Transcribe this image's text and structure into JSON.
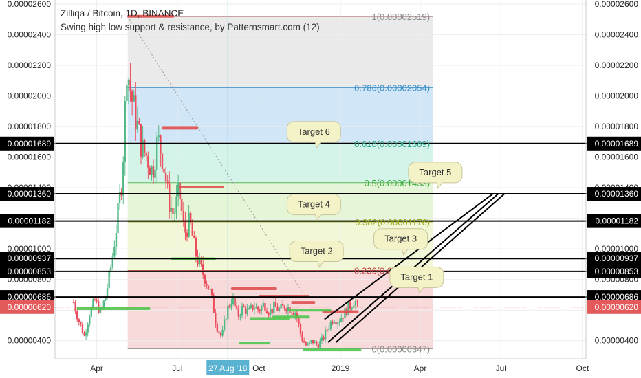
{
  "header": {
    "title": "Zilliqa / Bitcoin, 1D, BINANCE",
    "subtitle": "Swing high low support & resistance, by Patternsmart.com (12)"
  },
  "colors": {
    "fib_zone_top": "#e6e6e6",
    "fib_zone_786": "#c9e2f5",
    "fib_zone_618": "#cdf2e6",
    "fib_zone_5": "#e1f5d0",
    "fib_zone_382": "#f0f7d0",
    "fib_zone_low": "#f8d3d3",
    "price_badge": "#e25a5a",
    "candle_up": "#53b987",
    "candle_down": "#eb4d5c",
    "resistance": "#e05050",
    "support": "#50c850",
    "target_line": "#000000",
    "callout_fill": "#f4f3c8",
    "callout_stroke": "#c8c49a",
    "date_badge": "#58b2d0"
  },
  "chart_data": {
    "type": "candlestick",
    "y_scale": "linear",
    "ylim": [
      3e-06,
      2.6e-05
    ],
    "x_range": [
      "2018-02-13",
      "2019-10-05"
    ],
    "y_ticks": [
      "0.00000400",
      "0.00000600",
      "0.00000800",
      "0.00001000",
      "0.00001200",
      "0.00001400",
      "0.00001600",
      "0.00001800",
      "0.00002000",
      "0.00002200",
      "0.00002400",
      "0.00002600"
    ],
    "x_ticks": [
      {
        "label": "Apr",
        "date": "2018-04-01"
      },
      {
        "label": "Jul",
        "date": "2018-07-01"
      },
      {
        "label": "Oct",
        "date": "2018-10-01"
      },
      {
        "label": "2019",
        "date": "2019-01-01"
      },
      {
        "label": "Apr",
        "date": "2019-04-01"
      },
      {
        "label": "Jul",
        "date": "2019-07-01"
      },
      {
        "label": "Oct",
        "date": "2019-10-01"
      }
    ],
    "crosshair_date_label": "27 Aug '18",
    "crosshair_date": "2018-08-27",
    "current_price": "0.00000620",
    "current_price_value": 6.2e-06,
    "fib_range": {
      "from_date": "2018-05-06",
      "to_date": "2019-04-15"
    },
    "fib_levels": [
      {
        "label": "1(0.00002519)",
        "value": 2.519e-05,
        "color": "#8a8a8a"
      },
      {
        "label": "0.786(0.00002054)",
        "value": 2.054e-05,
        "color": "#3a8fc9"
      },
      {
        "label": "0.618(0.00001689)",
        "value": 1.689e-05,
        "color": "#2aa88a"
      },
      {
        "label": "0.5(0.00001433)",
        "value": 1.433e-05,
        "color": "#3caa3c"
      },
      {
        "label": "0.382(0.00001176)",
        "value": 1.176e-05,
        "color": "#9aaa20"
      },
      {
        "label": "0.236(0.00000859)",
        "value": 8.59e-06,
        "color": "#c04040"
      },
      {
        "label": "0(0.00000347)",
        "value": 3.47e-06,
        "color": "#8a8a8a"
      }
    ],
    "targets": [
      {
        "label": "Target 1",
        "level": "0.00000686",
        "value": 6.86e-06,
        "callout_date": "2019-03-28",
        "callout_y": 8.15e-06
      },
      {
        "label": "Target 2",
        "level": "0.00000853",
        "value": 8.53e-06,
        "callout_date": "2018-12-05",
        "callout_y": 9.85e-06
      },
      {
        "label": "Target 3",
        "level": "0.00000937",
        "value": 9.37e-06,
        "callout_date": "2019-03-10",
        "callout_y": 1.065e-05
      },
      {
        "label": "Target 4",
        "level": "0.00001182",
        "value": 1.182e-05,
        "callout_date": "2018-12-02",
        "callout_y": 1.29e-05
      },
      {
        "label": "Target 5",
        "level": "0.00001360",
        "value": 1.36e-05,
        "callout_date": "2019-04-18",
        "callout_y": 1.5e-05
      },
      {
        "label": "Target 6",
        "level": "0.00001689",
        "value": 1.689e-05,
        "callout_date": "2018-12-02",
        "callout_y": 1.765e-05
      }
    ],
    "resistance_segments": [
      {
        "from": "2018-05-07",
        "to": "2018-06-26",
        "value": 2.52e-05
      },
      {
        "from": "2018-06-15",
        "to": "2018-07-23",
        "value": 1.79e-05
      },
      {
        "from": "2018-07-04",
        "to": "2018-08-21",
        "value": 1.405e-05
      },
      {
        "from": "2018-09-01",
        "to": "2018-10-20",
        "value": 7.4e-06
      },
      {
        "from": "2018-10-02",
        "to": "2018-11-26",
        "value": 6.9e-06
      },
      {
        "from": "2018-11-08",
        "to": "2018-12-02",
        "value": 6.5e-06
      },
      {
        "from": "2018-12-13",
        "to": "2019-01-20",
        "value": 5.9e-06
      }
    ],
    "support_segments": [
      {
        "from": "2018-03-11",
        "to": "2018-05-30",
        "value": 6.1e-06
      },
      {
        "from": "2018-06-25",
        "to": "2018-08-12",
        "value": 9.35e-06
      },
      {
        "from": "2018-09-10",
        "to": "2018-10-12",
        "value": 3.85e-06
      },
      {
        "from": "2018-09-22",
        "to": "2018-11-03",
        "value": 5.45e-06
      },
      {
        "from": "2018-10-18",
        "to": "2018-11-26",
        "value": 5.55e-06
      },
      {
        "from": "2018-11-05",
        "to": "2018-12-20",
        "value": 6e-06
      },
      {
        "from": "2018-11-21",
        "to": "2019-01-23",
        "value": 3.4e-06
      }
    ],
    "channel_lines": [
      {
        "from_date": "2018-12-14",
        "from_value": 5.4e-06,
        "to_date": "2019-06-22",
        "to_value": 1.36e-05
      },
      {
        "from_date": "2018-12-18",
        "from_value": 3.9e-06,
        "to_date": "2019-06-28",
        "to_value": 1.36e-05
      },
      {
        "from_date": "2018-12-27",
        "from_value": 3.9e-06,
        "to_date": "2019-07-05",
        "to_value": 1.36e-05
      }
    ],
    "dotted_trend": {
      "from_date": "2018-05-06",
      "from_value": 2.519e-05,
      "to_date": "2018-11-22",
      "to_value": 6.9e-06
    },
    "price_path": [
      {
        "date": "2018-03-06",
        "value": 6.5e-06
      },
      {
        "date": "2018-03-12",
        "value": 5.3e-06
      },
      {
        "date": "2018-03-18",
        "value": 4.3e-06
      },
      {
        "date": "2018-03-24",
        "value": 5.8e-06
      },
      {
        "date": "2018-03-30",
        "value": 6.6e-06
      },
      {
        "date": "2018-04-06",
        "value": 5.8e-06
      },
      {
        "date": "2018-04-12",
        "value": 7.2e-06
      },
      {
        "date": "2018-04-18",
        "value": 9.1e-06
      },
      {
        "date": "2018-04-24",
        "value": 1.18e-05
      },
      {
        "date": "2018-04-30",
        "value": 1.48e-05
      },
      {
        "date": "2018-05-05",
        "value": 2.2e-05
      },
      {
        "date": "2018-05-10",
        "value": 2e-05
      },
      {
        "date": "2018-05-16",
        "value": 1.83e-05
      },
      {
        "date": "2018-05-22",
        "value": 1.66e-05
      },
      {
        "date": "2018-05-28",
        "value": 1.6e-05
      },
      {
        "date": "2018-06-03",
        "value": 1.5e-05
      },
      {
        "date": "2018-06-09",
        "value": 1.72e-05
      },
      {
        "date": "2018-06-15",
        "value": 1.58e-05
      },
      {
        "date": "2018-06-21",
        "value": 1.32e-05
      },
      {
        "date": "2018-06-27",
        "value": 1.22e-05
      },
      {
        "date": "2018-07-03",
        "value": 1.38e-05
      },
      {
        "date": "2018-07-09",
        "value": 1.1e-05
      },
      {
        "date": "2018-07-15",
        "value": 1.18e-05
      },
      {
        "date": "2018-07-21",
        "value": 9.8e-06
      },
      {
        "date": "2018-07-27",
        "value": 8.8e-06
      },
      {
        "date": "2018-08-02",
        "value": 8e-06
      },
      {
        "date": "2018-08-08",
        "value": 7e-06
      },
      {
        "date": "2018-08-14",
        "value": 5e-06
      },
      {
        "date": "2018-08-20",
        "value": 4.2e-06
      },
      {
        "date": "2018-08-26",
        "value": 6e-06
      },
      {
        "date": "2018-09-01",
        "value": 6.8e-06
      },
      {
        "date": "2018-09-07",
        "value": 5.6e-06
      },
      {
        "date": "2018-09-13",
        "value": 6.2e-06
      },
      {
        "date": "2018-09-19",
        "value": 5.8e-06
      },
      {
        "date": "2018-09-25",
        "value": 6.3e-06
      },
      {
        "date": "2018-10-01",
        "value": 6e-06
      },
      {
        "date": "2018-10-07",
        "value": 6.4e-06
      },
      {
        "date": "2018-10-13",
        "value": 5.9e-06
      },
      {
        "date": "2018-10-19",
        "value": 6.2e-06
      },
      {
        "date": "2018-10-25",
        "value": 6e-06
      },
      {
        "date": "2018-10-31",
        "value": 6.3e-06
      },
      {
        "date": "2018-11-06",
        "value": 6.1e-06
      },
      {
        "date": "2018-11-12",
        "value": 5.8e-06
      },
      {
        "date": "2018-11-18",
        "value": 4.2e-06
      },
      {
        "date": "2018-11-24",
        "value": 3.6e-06
      },
      {
        "date": "2018-11-30",
        "value": 4e-06
      },
      {
        "date": "2018-12-06",
        "value": 3.7e-06
      },
      {
        "date": "2018-12-12",
        "value": 4.1e-06
      },
      {
        "date": "2018-12-18",
        "value": 4.9e-06
      },
      {
        "date": "2018-12-24",
        "value": 5.5e-06
      },
      {
        "date": "2018-12-30",
        "value": 5.3e-06
      },
      {
        "date": "2019-01-05",
        "value": 5.8e-06
      },
      {
        "date": "2019-01-11",
        "value": 6.2e-06
      },
      {
        "date": "2019-01-17",
        "value": 6.7e-06
      },
      {
        "date": "2019-01-20",
        "value": 6.2e-06
      }
    ]
  }
}
